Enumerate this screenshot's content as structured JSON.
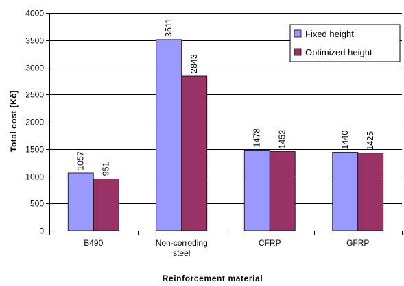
{
  "chart_data": {
    "type": "bar",
    "title": "",
    "xlabel": "Reinforcement material",
    "ylabel": "Total cost [Kč]",
    "ylim": [
      0,
      4000
    ],
    "ytick_step": 500,
    "grid": "horizontal",
    "legend_position": "top-right",
    "categories": [
      [
        "B490"
      ],
      [
        "Non-corroding",
        "steel"
      ],
      [
        "CFRP"
      ],
      [
        "GFRP"
      ]
    ],
    "series": [
      {
        "name": "Fixed height",
        "color": "#9999ff",
        "values": [
          1057,
          3511,
          1478,
          1440
        ]
      },
      {
        "name": "Optimized height",
        "color": "#993366",
        "values": [
          951,
          2843,
          1452,
          1425
        ]
      }
    ]
  }
}
